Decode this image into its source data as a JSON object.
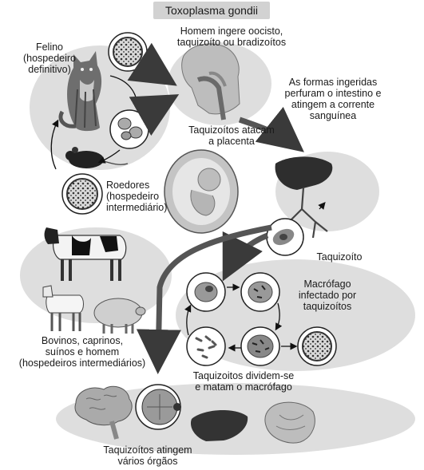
{
  "title": "Toxoplasma gondii",
  "labels": {
    "felino": "Felino\n(hospedeiro\ndefinitivo)",
    "homem_ingere": "Homem ingere oocisto,\ntaquizoíto ou bradizoítos",
    "formas_ingeridas": "As formas ingeridas\nperfuram o intestino e\natingem a corrente\nsanguínea",
    "taquizoitos_placenta": "Taquizoítos atacam\na placenta",
    "roedores": "Roedores\n(hospedeiro\nintermediário)",
    "taquizoito": "Taquizoíto",
    "macrofago": "Macrófago\ninfectado por\ntaquizoítos",
    "bovinos": "Bovinos, caprinos,\nsuínos e homem\n(hospedeiros intermediários)",
    "dividem": "Taquizoitos dividem-se\ne matam o macrófago",
    "atingem": "Taquizoítos atingem\nvários órgãos"
  },
  "icons": [
    "cat-icon",
    "mouse-icon",
    "cyst-icon",
    "oocyst-icon",
    "human-head-icon",
    "fetus-icon",
    "liver-icon",
    "cow-icon",
    "goat-icon",
    "pig-icon",
    "macrophage-icon",
    "brain-icon",
    "eye-icon",
    "stomach-icon"
  ]
}
